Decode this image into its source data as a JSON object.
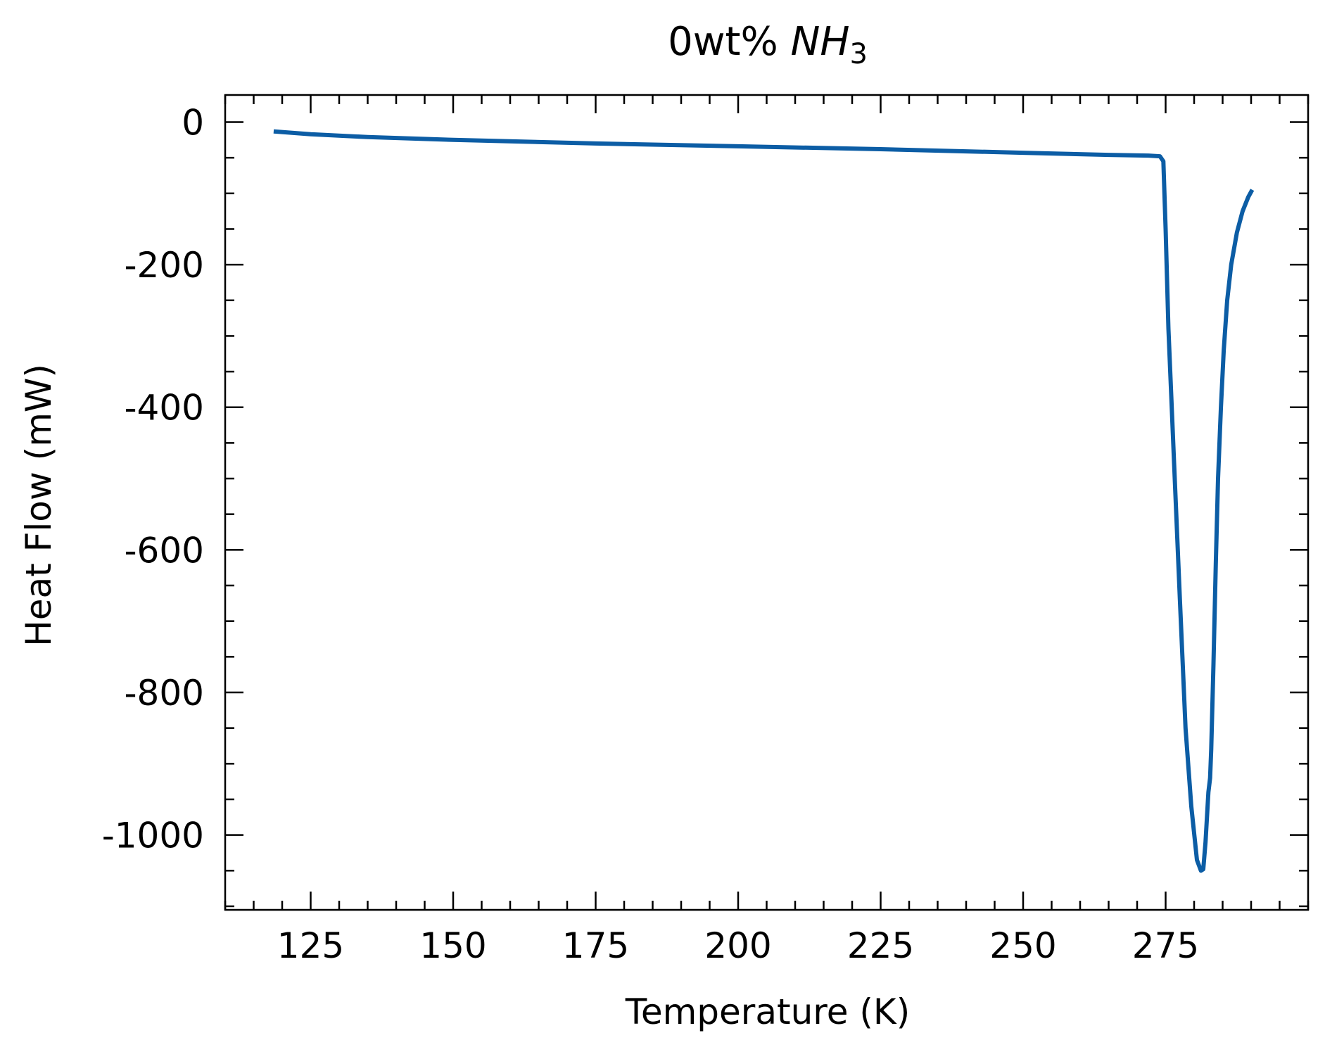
{
  "chart_data": {
    "type": "line",
    "title_text": "0wt% ",
    "title_species": "NH",
    "title_subscript": "3",
    "xlabel": "Temperature (K)",
    "ylabel": "Heat Flow (mW)",
    "xlim": [
      110,
      300
    ],
    "ylim": [
      -1105,
      38
    ],
    "x_ticks": [
      125,
      150,
      175,
      200,
      225,
      250,
      275
    ],
    "x_tick_labels": [
      "125",
      "150",
      "175",
      "200",
      "225",
      "250",
      "275"
    ],
    "x_minor_step": 5,
    "y_ticks": [
      0,
      -200,
      -400,
      -600,
      -800,
      -1000
    ],
    "y_tick_labels": [
      "0",
      "-200",
      "-400",
      "-600",
      "-800",
      "-1000"
    ],
    "y_minor_step": 50,
    "grid": false,
    "line_color": "#0c5da5",
    "series": [
      {
        "x": [
          118.5,
          125,
          135,
          150,
          175,
          200,
          225,
          250,
          265,
          272,
          274,
          274.6,
          275,
          275.5,
          276.5,
          277.5,
          278.5,
          279.5,
          280.5,
          281.2,
          281.6,
          282,
          282.5,
          282.8,
          283,
          283.4,
          283.8,
          284.2,
          284.7,
          285.2,
          285.8,
          286.5,
          287.5,
          288.5,
          289.5,
          290.2
        ],
        "y": [
          -13,
          -17,
          -21,
          -25,
          -30,
          -34,
          -38,
          -43,
          -46,
          -47,
          -48,
          -55,
          -150,
          -290,
          -480,
          -670,
          -850,
          -960,
          -1035,
          -1050,
          -1048,
          -1010,
          -940,
          -920,
          -880,
          -760,
          -620,
          -500,
          -400,
          -320,
          -250,
          -200,
          -155,
          -125,
          -105,
          -95
        ]
      }
    ]
  }
}
